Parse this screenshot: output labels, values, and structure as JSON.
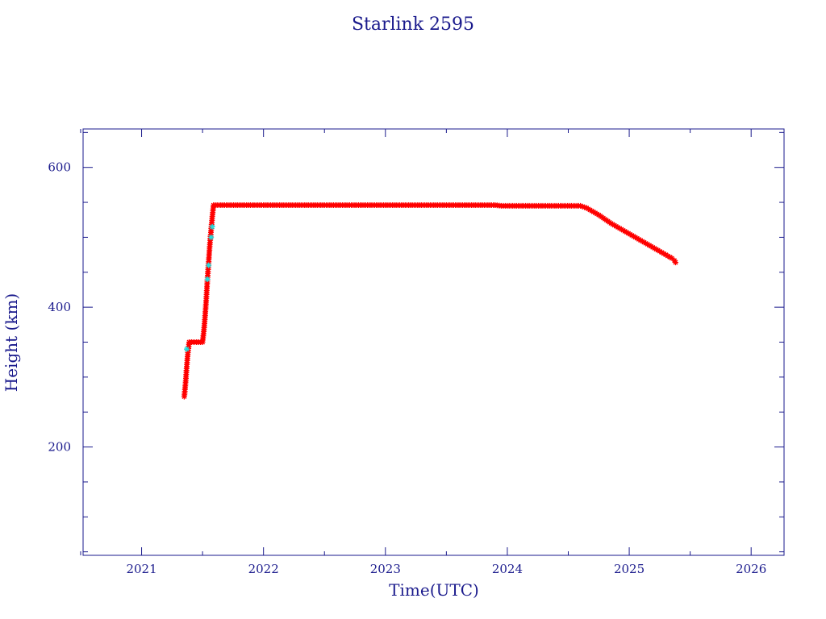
{
  "chart_data": {
    "type": "scatter",
    "title": "Starlink 2595",
    "xlabel": "Time(UTC)",
    "ylabel": "Height (km)",
    "xlim": [
      2020.52,
      2026.27
    ],
    "ylim": [
      45,
      655
    ],
    "x_ticks": [
      "2021",
      "2022",
      "2023",
      "2024",
      "2025",
      "2026"
    ],
    "y_ticks": [
      "200",
      "400",
      "600"
    ],
    "grid": false,
    "legend": "none",
    "colors": {
      "axis": "#1a1a8c",
      "primary": "#ff0000",
      "secondary": "#22dddd"
    },
    "series": [
      {
        "color": "#ff0000",
        "x": [
          2021.35,
          2021.36,
          2021.37,
          2021.38,
          2021.39,
          2021.41,
          2021.45,
          2021.5,
          2021.51,
          2021.52,
          2021.53,
          2021.54,
          2021.55,
          2021.56,
          2021.57,
          2021.58,
          2021.59,
          2021.65,
          2021.8,
          2022.0,
          2022.5,
          2023.0,
          2023.5,
          2023.9,
          2023.95,
          2024.0,
          2024.3,
          2024.6,
          2024.65,
          2024.75,
          2024.85,
          2024.95,
          2025.05,
          2025.15,
          2025.25,
          2025.3,
          2025.35,
          2025.37,
          2025.38
        ],
        "y": [
          272,
          290,
          315,
          335,
          350,
          350,
          350,
          350,
          365,
          385,
          410,
          440,
          465,
          490,
          510,
          530,
          546,
          546,
          546,
          546,
          546,
          546,
          546,
          546,
          545,
          545,
          545,
          545,
          542,
          532,
          520,
          510,
          500,
          490,
          480,
          475,
          470,
          467,
          464
        ]
      },
      {
        "color": "#22dddd",
        "x": [
          2021.37,
          2021.54,
          2021.55,
          2021.57,
          2021.58
        ],
        "y": [
          340,
          440,
          460,
          500,
          515
        ]
      }
    ]
  }
}
